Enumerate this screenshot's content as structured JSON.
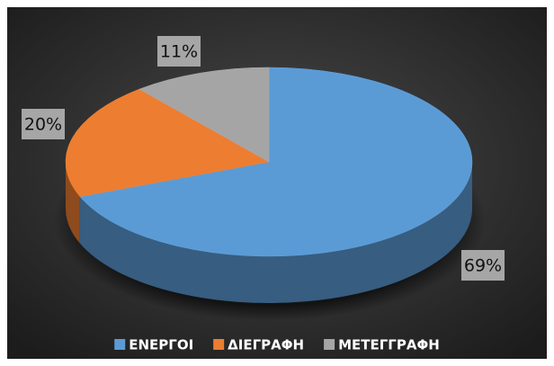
{
  "chart_data": {
    "type": "pie3d",
    "categories": [
      "ΕΝΕΡΓΟΙ",
      "ΔΙΕΓΡΑΦΗ",
      "ΜΕΤΕΓΓΡΑΦΗ"
    ],
    "values": [
      69,
      20,
      11
    ],
    "value_labels": [
      "69%",
      "20%",
      "11%"
    ],
    "colors": [
      "#5b9bd5",
      "#ed7d31",
      "#a5a5a5"
    ],
    "legend": "bottom"
  }
}
